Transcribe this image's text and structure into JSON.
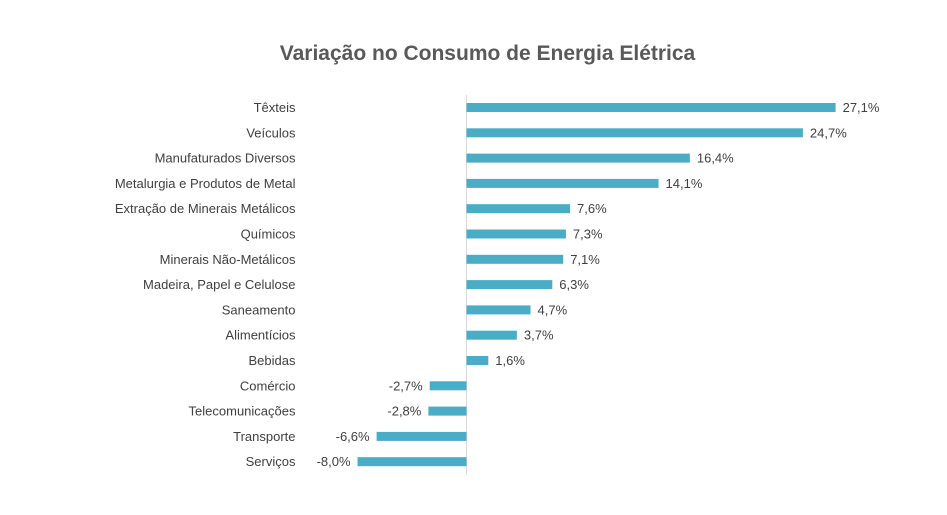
{
  "chart_data": {
    "type": "bar",
    "orientation": "horizontal",
    "title": "Variação no Consumo de Energia Elétrica",
    "xlabel": "",
    "ylabel": "",
    "categories": [
      "Têxteis",
      "Veículos",
      "Manufaturados Diversos",
      "Metalurgia e Produtos de Metal",
      "Extração de Minerais Metálicos",
      "Químicos",
      "Minerais Não-Metálicos",
      "Madeira, Papel e Celulose",
      "Saneamento",
      "Alimentícios",
      "Bebidas",
      "Comércio",
      "Telecomunicações",
      "Transporte",
      "Serviços"
    ],
    "values": [
      27.1,
      24.7,
      16.4,
      14.1,
      7.6,
      7.3,
      7.1,
      6.3,
      4.7,
      3.7,
      1.6,
      -2.7,
      -2.8,
      -6.6,
      -8.0
    ],
    "data_labels": [
      "27,1%",
      "24,7%",
      "16,4%",
      "14,1%",
      "7,6%",
      "7,3%",
      "7,1%",
      "6,3%",
      "4,7%",
      "3,7%",
      "1,6%",
      "-2,7%",
      "-2,8%",
      "-6,6%",
      "-8,0%"
    ],
    "unit": "%",
    "grid": false,
    "legend": "none",
    "bar_color": "#4BACC6",
    "axis_color": "#d9d9d9"
  }
}
